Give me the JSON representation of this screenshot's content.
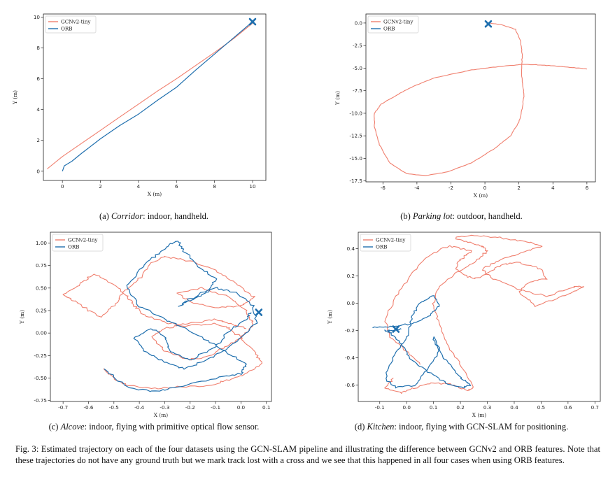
{
  "figure": {
    "caption_label": "Fig. 3:",
    "caption_text": "Estimated trajectory on each of the four datasets using the GCN-SLAM pipeline and illustrating the difference between GCNv2 and ORB features. Note that these trajectories do not have any ground truth but we mark track lost with a cross and we see that this happened in all four cases when using ORB features."
  },
  "colors": {
    "gcn": "#f07f6e",
    "orb": "#1f6fae"
  },
  "subfigures": [
    {
      "tag": "(a)",
      "name": "Corridor",
      "rest": ": indoor, handheld."
    },
    {
      "tag": "(b)",
      "name": "Parking lot",
      "rest": ": outdoor, handheld."
    },
    {
      "tag": "(c)",
      "name": "Alcove",
      "rest": ": indoor, flying with primitive optical flow sensor."
    },
    {
      "tag": "(d)",
      "name": "Kitchen",
      "rest": ": indoor, flying with GCN-SLAM for positioning."
    }
  ],
  "chart_data": [
    {
      "type": "line",
      "xlabel": "X (m)",
      "ylabel": "Y (m)",
      "xlim": [
        -1.0,
        10.7
      ],
      "ylim": [
        -0.6,
        10.2
      ],
      "xticks": [
        "0",
        "2",
        "4",
        "6",
        "8",
        "10"
      ],
      "yticks": [
        "0",
        "2",
        "4",
        "6",
        "8",
        "10"
      ],
      "legend": {
        "position": "top-left"
      },
      "series": [
        {
          "name": "GCNv2-tiny",
          "x": [
            -0.8,
            0.0,
            1.0,
            2.0,
            3.0,
            4.0,
            5.0,
            6.0,
            7.0,
            8.0,
            9.0,
            10.0
          ],
          "y": [
            0.15,
            0.95,
            1.8,
            2.65,
            3.5,
            4.35,
            5.2,
            6.0,
            6.85,
            7.7,
            8.6,
            9.6
          ]
        },
        {
          "name": "ORB",
          "x": [
            0.0,
            0.1,
            0.5,
            1.0,
            2.0,
            3.0,
            4.0,
            5.0,
            6.0,
            7.0,
            8.0,
            9.0,
            10.0
          ],
          "y": [
            0.0,
            0.35,
            0.65,
            1.15,
            2.1,
            2.95,
            3.7,
            4.6,
            5.45,
            6.55,
            7.6,
            8.65,
            9.7
          ]
        }
      ],
      "track_lost": [
        10.0,
        9.7
      ]
    },
    {
      "type": "line",
      "xlabel": "X (m)",
      "ylabel": "Y (m)",
      "xlim": [
        -7.0,
        6.5
      ],
      "ylim": [
        -17.6,
        1.0
      ],
      "xticks": [
        "-6",
        "-4",
        "-2",
        "0",
        "2",
        "4",
        "6"
      ],
      "yticks": [
        "0.0",
        "-2.5",
        "-5.0",
        "-7.5",
        "-10.0",
        "-12.5",
        "-15.0",
        "-17.5"
      ],
      "legend": {
        "position": "top-left"
      },
      "series": [
        {
          "name": "GCNv2-tiny",
          "x": [
            0.3,
            1.0,
            1.8,
            2.1,
            2.2,
            2.15,
            2.2,
            2.3,
            2.2,
            2.0,
            1.5,
            0.5,
            -0.8,
            -2.2,
            -3.5,
            -4.6,
            -5.6,
            -6.2,
            -6.5,
            -6.5,
            -6.1,
            -5.2,
            -4.2,
            -3.0,
            -1.8,
            -0.8,
            0.5,
            1.5,
            2.2,
            3.0,
            4.0,
            5.0,
            6.0
          ],
          "y": [
            0.0,
            -0.2,
            -0.7,
            -2.0,
            -3.5,
            -5.0,
            -6.5,
            -8.0,
            -9.5,
            -11.0,
            -12.5,
            -14.0,
            -15.5,
            -16.5,
            -16.9,
            -16.7,
            -15.5,
            -13.5,
            -11.5,
            -10.0,
            -9.0,
            -8.0,
            -7.0,
            -6.1,
            -5.6,
            -5.2,
            -4.9,
            -4.7,
            -4.6,
            -4.62,
            -4.75,
            -4.9,
            -5.1
          ]
        },
        {
          "name": "ORB",
          "x": [
            0.1,
            0.3
          ],
          "y": [
            0.0,
            -0.1
          ]
        }
      ],
      "track_lost": [
        0.2,
        -0.1
      ]
    },
    {
      "type": "line",
      "xlabel": "X (m)",
      "ylabel": "Y (m)",
      "xlim": [
        -0.75,
        0.12
      ],
      "ylim": [
        -0.76,
        1.12
      ],
      "xticks": [
        "-0.7",
        "-0.6",
        "-0.5",
        "-0.4",
        "-0.3",
        "-0.2",
        "-0.1",
        "0.0",
        "0.1"
      ],
      "yticks": [
        "1.00",
        "0.75",
        "0.50",
        "0.25",
        "0.00",
        "-0.25",
        "-0.50",
        "-0.75"
      ],
      "legend": {
        "position": "top-left"
      },
      "series": [
        {
          "name": "GCNv2-tiny",
          "x": [
            -0.54,
            -0.5,
            -0.45,
            -0.35,
            -0.25,
            -0.12,
            -0.05,
            0.02,
            0.08,
            0.05,
            0.0,
            -0.05,
            -0.1,
            -0.22,
            -0.3,
            -0.38,
            -0.42,
            -0.45,
            -0.5,
            -0.58,
            -0.63,
            -0.7,
            -0.65,
            -0.6,
            -0.55,
            -0.5,
            -0.46,
            -0.4,
            -0.35,
            -0.3,
            -0.2,
            -0.1,
            -0.02,
            0.05,
            0.0,
            -0.1,
            -0.2,
            -0.25,
            -0.15,
            -0.05,
            0.02,
            0.05,
            0.0,
            -0.06,
            -0.12,
            -0.2,
            -0.3,
            -0.35,
            -0.3,
            -0.22,
            -0.1,
            -0.04,
            0.02
          ],
          "y": [
            -0.4,
            -0.5,
            -0.58,
            -0.62,
            -0.6,
            -0.58,
            -0.52,
            -0.45,
            -0.33,
            -0.2,
            -0.05,
            0.05,
            0.1,
            0.08,
            0.12,
            0.2,
            0.3,
            0.42,
            0.55,
            0.65,
            0.55,
            0.42,
            0.35,
            0.25,
            0.18,
            0.3,
            0.45,
            0.6,
            0.78,
            0.85,
            0.8,
            0.7,
            0.55,
            0.4,
            0.3,
            0.28,
            0.35,
            0.45,
            0.5,
            0.4,
            0.25,
            0.1,
            -0.05,
            -0.15,
            -0.25,
            -0.3,
            -0.2,
            -0.05,
            0.05,
            0.1,
            0.15,
            0.1,
            0.05
          ]
        },
        {
          "name": "ORB",
          "x": [
            -0.54,
            -0.45,
            -0.35,
            -0.25,
            -0.1,
            0.0,
            0.02,
            -0.05,
            -0.12,
            -0.22,
            -0.3,
            -0.4,
            -0.45,
            -0.4,
            -0.34,
            -0.28,
            -0.25,
            -0.22,
            -0.16,
            -0.1,
            -0.13,
            -0.2,
            -0.24,
            -0.17,
            -0.1,
            -0.02,
            0.05,
            0.06,
            0.0,
            -0.07,
            -0.15,
            -0.22,
            -0.3,
            -0.38,
            -0.42,
            -0.35,
            -0.3,
            -0.28,
            -0.2,
            -0.1,
            -0.04,
            0.02,
            0.04
          ],
          "y": [
            -0.4,
            -0.6,
            -0.65,
            -0.6,
            -0.5,
            -0.45,
            -0.35,
            -0.22,
            -0.1,
            0.05,
            0.15,
            0.3,
            0.5,
            0.7,
            0.85,
            0.98,
            1.03,
            0.9,
            0.72,
            0.6,
            0.48,
            0.38,
            0.3,
            0.4,
            0.5,
            0.45,
            0.3,
            0.12,
            -0.05,
            -0.2,
            -0.32,
            -0.4,
            -0.32,
            -0.2,
            -0.05,
            0.05,
            -0.05,
            -0.2,
            -0.3,
            -0.15,
            0.05,
            0.15,
            0.23
          ]
        }
      ],
      "track_lost": [
        0.07,
        0.23
      ]
    },
    {
      "type": "line",
      "xlabel": "X (m)",
      "ylabel": "Y (m)",
      "xlim": [
        -0.18,
        0.72
      ],
      "ylim": [
        -0.72,
        0.52
      ],
      "xticks": [
        "-0.1",
        "0.0",
        "0.1",
        "0.2",
        "0.3",
        "0.4",
        "0.5",
        "0.6",
        "0.7"
      ],
      "yticks": [
        "0.4",
        "0.2",
        "0.0",
        "-0.2",
        "-0.4",
        "-0.6"
      ],
      "legend": {
        "position": "top-left"
      },
      "series": [
        {
          "name": "GCNv2-tiny",
          "x": [
            -0.05,
            -0.08,
            -0.02,
            0.03,
            0.1,
            0.18,
            0.22,
            0.25,
            0.2,
            0.15,
            0.12,
            0.1,
            0.12,
            0.18,
            0.25,
            0.3,
            0.28,
            0.22,
            0.18,
            0.25,
            0.35,
            0.45,
            0.5,
            0.45,
            0.35,
            0.28,
            0.32,
            0.42,
            0.52,
            0.62,
            0.66,
            0.58,
            0.48,
            0.42,
            0.45,
            0.52,
            0.5,
            0.42,
            0.35,
            0.3,
            0.26,
            0.22,
            0.18,
            0.2,
            0.24,
            0.16,
            0.08,
            0.02,
            -0.04,
            -0.08,
            -0.06,
            0.0,
            0.05
          ],
          "y": [
            -0.55,
            -0.62,
            -0.66,
            -0.62,
            -0.58,
            -0.6,
            -0.64,
            -0.62,
            -0.45,
            -0.3,
            -0.15,
            0.0,
            0.12,
            0.22,
            0.3,
            0.38,
            0.42,
            0.45,
            0.48,
            0.5,
            0.48,
            0.45,
            0.42,
            0.38,
            0.32,
            0.25,
            0.18,
            0.1,
            0.05,
            0.12,
            0.12,
            0.05,
            -0.02,
            0.08,
            0.15,
            0.18,
            0.25,
            0.3,
            0.28,
            0.22,
            0.18,
            0.2,
            0.26,
            0.32,
            0.38,
            0.42,
            0.35,
            0.22,
            0.05,
            -0.12,
            -0.25,
            -0.35,
            -0.45
          ]
        },
        {
          "name": "ORB",
          "x": [
            -0.13,
            -0.05,
            0.02,
            0.08,
            0.12,
            0.1,
            0.05,
            0.02,
            0.0,
            -0.05,
            -0.08,
            -0.04,
            0.03,
            0.08,
            0.12,
            0.1,
            0.14,
            0.2,
            0.24,
            0.2,
            0.14,
            0.08,
            0.02,
            -0.02,
            -0.06,
            -0.08,
            -0.05,
            -0.02
          ],
          "y": [
            -0.18,
            -0.17,
            -0.15,
            -0.1,
            -0.02,
            0.06,
            0.0,
            -0.1,
            -0.25,
            -0.4,
            -0.55,
            -0.62,
            -0.6,
            -0.48,
            -0.35,
            -0.25,
            -0.4,
            -0.55,
            -0.6,
            -0.62,
            -0.58,
            -0.5,
            -0.42,
            -0.3,
            -0.22,
            -0.2,
            -0.2,
            -0.19
          ]
        }
      ],
      "track_lost": [
        -0.04,
        -0.19
      ]
    }
  ]
}
